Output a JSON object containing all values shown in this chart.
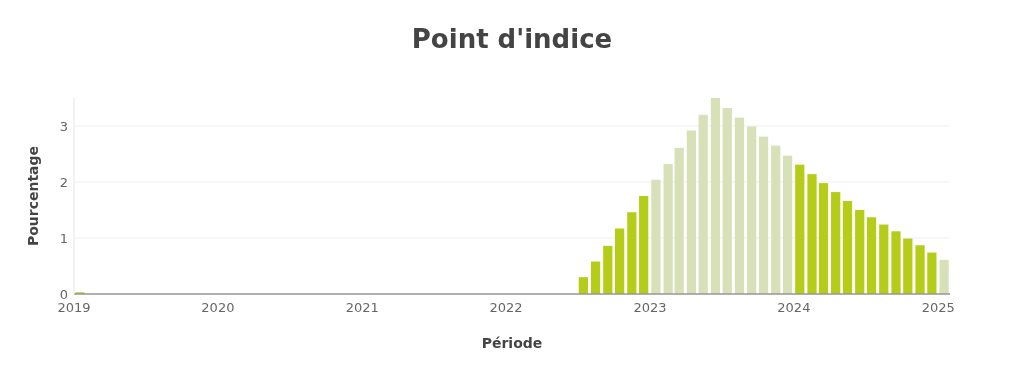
{
  "chart_data": {
    "type": "bar",
    "title": "Point d'indice",
    "xlabel": "Période",
    "ylabel": "Pourcentage",
    "x": [
      "2019-01-16",
      "2022-07-16",
      "2022-08-16",
      "2022-09-16",
      "2022-10-16",
      "2022-11-16",
      "2022-12-16",
      "2023-01-16",
      "2023-02-16",
      "2023-03-16",
      "2023-04-16",
      "2023-05-16",
      "2023-06-16",
      "2023-07-16",
      "2023-08-16",
      "2023-09-16",
      "2023-10-16",
      "2023-11-16",
      "2023-12-16",
      "2024-01-16",
      "2024-02-16",
      "2024-03-16",
      "2024-04-16",
      "2024-05-16",
      "2024-06-16",
      "2024-07-16",
      "2024-08-16",
      "2024-09-16",
      "2024-10-16",
      "2024-11-16",
      "2024-12-16",
      "2025-01-16"
    ],
    "values": [
      0.03,
      0.3,
      0.58,
      0.86,
      1.17,
      1.46,
      1.75,
      2.04,
      2.32,
      2.61,
      2.92,
      3.2,
      3.5,
      3.32,
      3.15,
      2.99,
      2.81,
      2.65,
      2.47,
      2.31,
      2.14,
      1.98,
      1.82,
      1.66,
      1.5,
      1.37,
      1.24,
      1.12,
      0.99,
      0.87,
      0.74,
      0.61
    ],
    "colors": [
      "#b5cc18",
      "#b5cc18",
      "#b5cc18",
      "#b5cc18",
      "#b5cc18",
      "#b5cc18",
      "#b5cc18",
      "#d8e0b8",
      "#d8e0b8",
      "#d8e0b8",
      "#d8e0b8",
      "#d8e0b8",
      "#d8e0b8",
      "#d8e0b8",
      "#d8e0b8",
      "#d8e0b8",
      "#d8e0b8",
      "#d8e0b8",
      "#d8e0b8",
      "#b5cc18",
      "#b5cc18",
      "#b5cc18",
      "#b5cc18",
      "#b5cc18",
      "#b5cc18",
      "#b5cc18",
      "#b5cc18",
      "#b5cc18",
      "#b5cc18",
      "#b5cc18",
      "#b5cc18",
      "#d8e0b8"
    ],
    "xlim": [
      "2019-01-01",
      "2025-01-31"
    ],
    "xticks": [
      "2019",
      "2020",
      "2021",
      "2022",
      "2023",
      "2024",
      "2025"
    ],
    "ylim": [
      0,
      3.5
    ],
    "yticks": [
      0,
      1,
      2,
      3
    ],
    "grid": "y"
  }
}
